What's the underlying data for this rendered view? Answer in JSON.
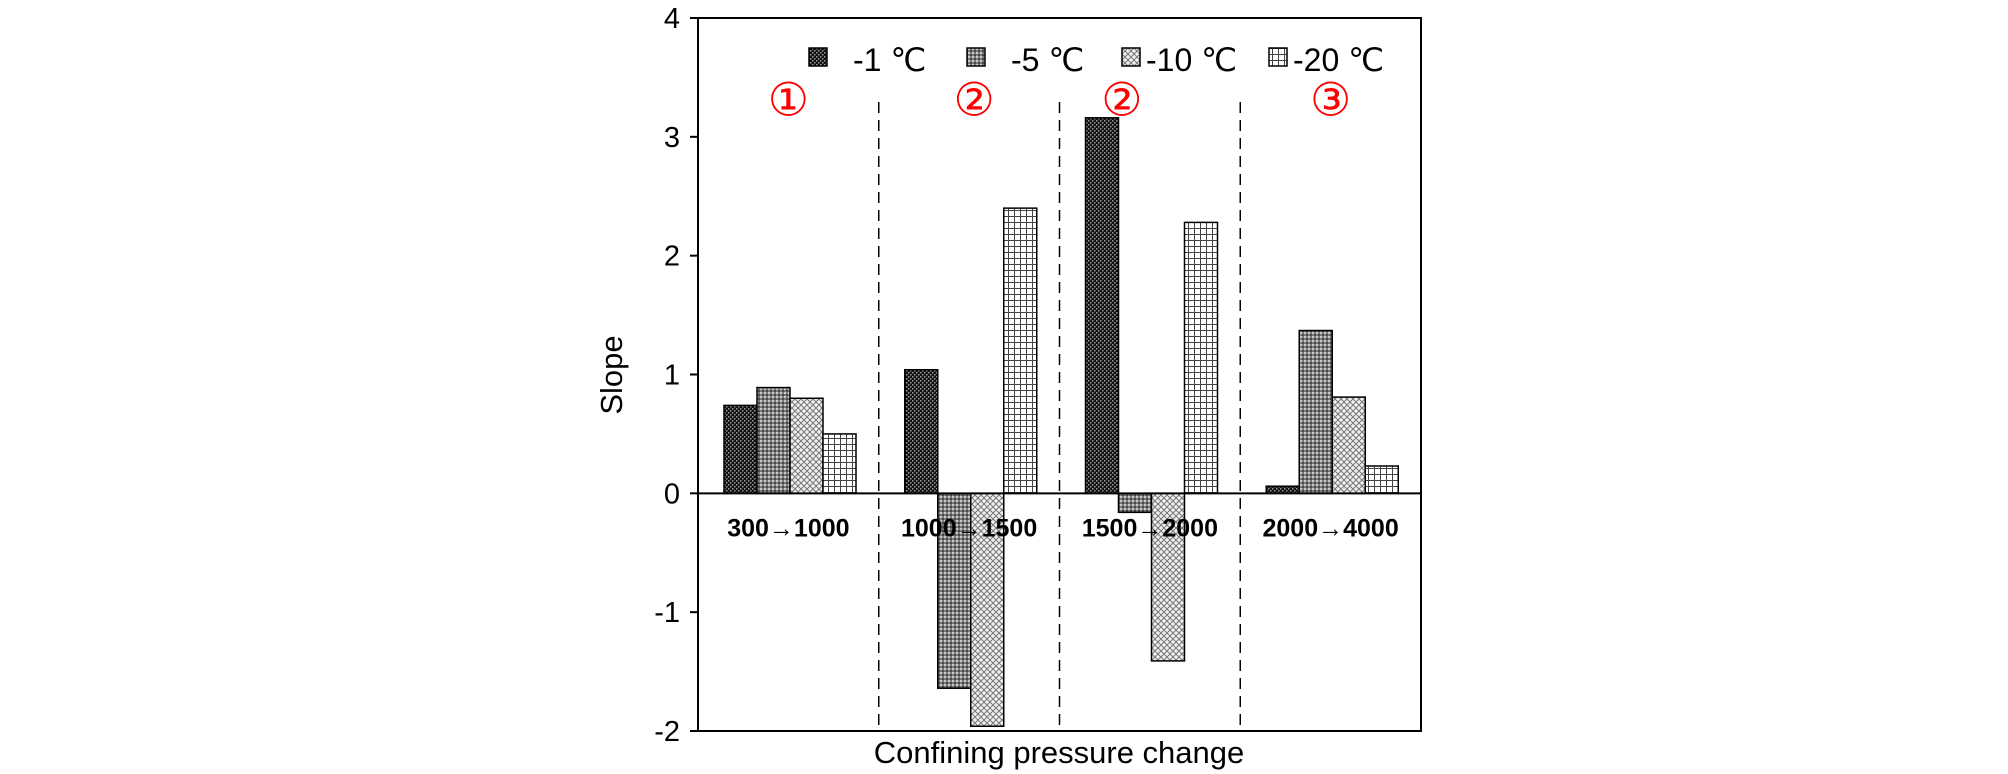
{
  "chart_data": {
    "type": "bar",
    "xlabel": "Confining pressure change",
    "ylabel": "Slope",
    "ylim": [
      -2,
      4
    ],
    "yticks": [
      -2,
      -1,
      0,
      1,
      2,
      3,
      4
    ],
    "grid": false,
    "legend_position": "top",
    "categories": [
      "300→1000",
      "1000→1500",
      "1500→2000",
      "2000→4000"
    ],
    "region_labels": [
      "①",
      "②",
      "②",
      "③"
    ],
    "series": [
      {
        "name": "-1 ℃",
        "pattern": "dots-dark",
        "values": [
          0.74,
          1.04,
          3.16,
          0.06
        ]
      },
      {
        "name": "-5 ℃",
        "pattern": "dots-gray",
        "values": [
          0.89,
          -1.64,
          -0.16,
          1.37
        ]
      },
      {
        "name": "-10 ℃",
        "pattern": "crosshatch-light",
        "values": [
          0.8,
          -1.96,
          -1.41,
          0.81
        ]
      },
      {
        "name": "-20 ℃",
        "pattern": "grid",
        "values": [
          0.5,
          2.4,
          2.28,
          0.23
        ]
      }
    ],
    "colors": {
      "region_label": "#ff0000",
      "axis": "#000000"
    }
  }
}
